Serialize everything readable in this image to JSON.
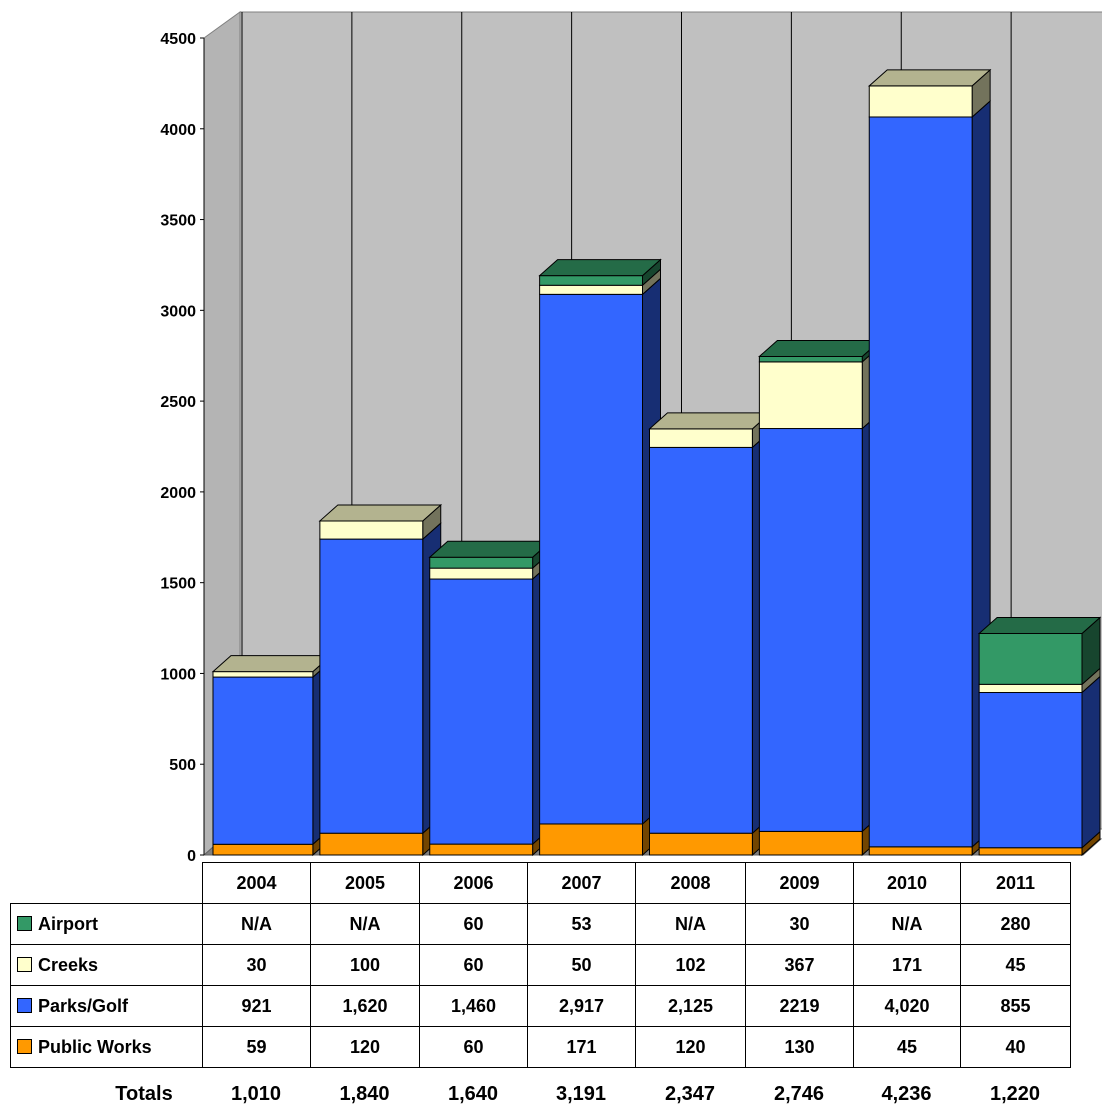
{
  "chart_data": {
    "type": "bar",
    "stacked": true,
    "categories": [
      "2004",
      "2005",
      "2006",
      "2007",
      "2008",
      "2009",
      "2010",
      "2011"
    ],
    "series": [
      {
        "name": "Public Works",
        "color": "#ff9900",
        "values": [
          59,
          120,
          60,
          171,
          120,
          130,
          45,
          40
        ]
      },
      {
        "name": "Parks/Golf",
        "color": "#3366ff",
        "values": [
          921,
          1620,
          1460,
          2917,
          2125,
          2219,
          4020,
          855
        ]
      },
      {
        "name": "Creeks",
        "color": "#ffffcc",
        "values": [
          30,
          100,
          60,
          50,
          102,
          367,
          171,
          45
        ]
      },
      {
        "name": "Airport",
        "color": "#339966",
        "values": [
          null,
          null,
          60,
          53,
          null,
          30,
          null,
          280
        ]
      }
    ],
    "ylim": [
      0,
      4500
    ],
    "yticks": [
      "0",
      "500",
      "1000",
      "1500",
      "2000",
      "2500",
      "3000",
      "3500",
      "4000",
      "4500"
    ],
    "grid": true,
    "legend": "table-below"
  },
  "table": {
    "headers": [
      "2004",
      "2005",
      "2006",
      "2007",
      "2008",
      "2009",
      "2010",
      "2011"
    ],
    "rows": [
      {
        "label": "Airport",
        "color": "#339966",
        "cells": [
          "N/A",
          "N/A",
          "60",
          "53",
          "N/A",
          "30",
          "N/A",
          "280"
        ]
      },
      {
        "label": "Creeks",
        "color": "#ffffcc",
        "cells": [
          "30",
          "100",
          "60",
          "50",
          "102",
          "367",
          "171",
          "45"
        ]
      },
      {
        "label": "Parks/Golf",
        "color": "#3366ff",
        "cells": [
          "921",
          "1,620",
          "1,460",
          "2,917",
          "2,125",
          "2219",
          "4,020",
          "855"
        ]
      },
      {
        "label": "Public Works",
        "color": "#ff9900",
        "cells": [
          "59",
          "120",
          "60",
          "171",
          "120",
          "130",
          "45",
          "40"
        ]
      }
    ],
    "totals_label": "Totals",
    "totals": [
      "1,010",
      "1,840",
      "1,640",
      "3,191",
      "2,347",
      "2,746",
      "4,236",
      "1,220"
    ]
  }
}
